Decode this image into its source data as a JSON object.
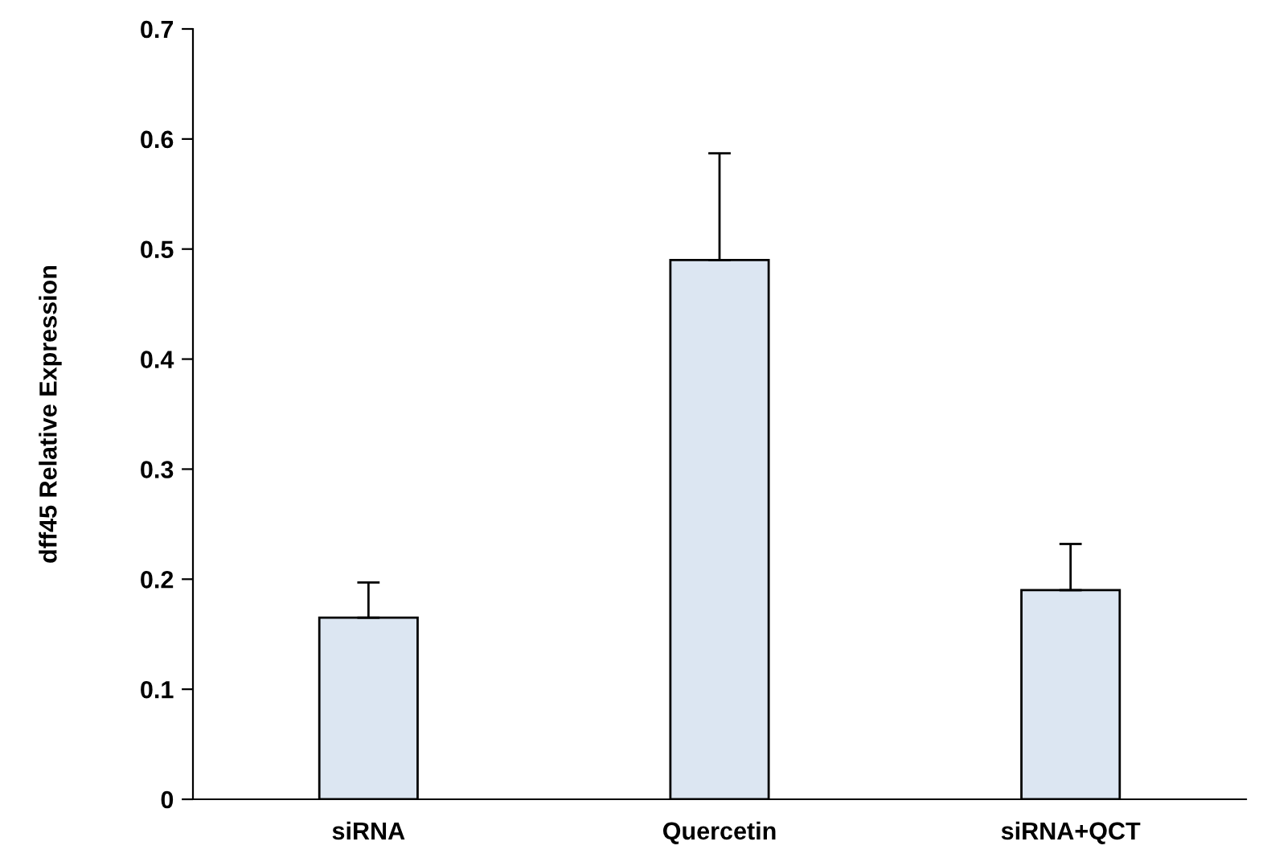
{
  "chart_data": {
    "type": "bar",
    "ylabel": "dff45 Relative Expression",
    "categories": [
      "siRNA",
      "Quercetin",
      "siRNA+QCT"
    ],
    "values": [
      0.165,
      0.49,
      0.19
    ],
    "errors": [
      [
        0.165,
        0.197
      ],
      [
        0.49,
        0.587
      ],
      [
        0.19,
        0.232
      ]
    ],
    "color": "#dce6f2",
    "ylim": [
      0,
      0.7
    ],
    "yticks": [
      0,
      0.1,
      0.2,
      0.3,
      0.4,
      0.5,
      0.6,
      0.7
    ],
    "grid": false
  }
}
